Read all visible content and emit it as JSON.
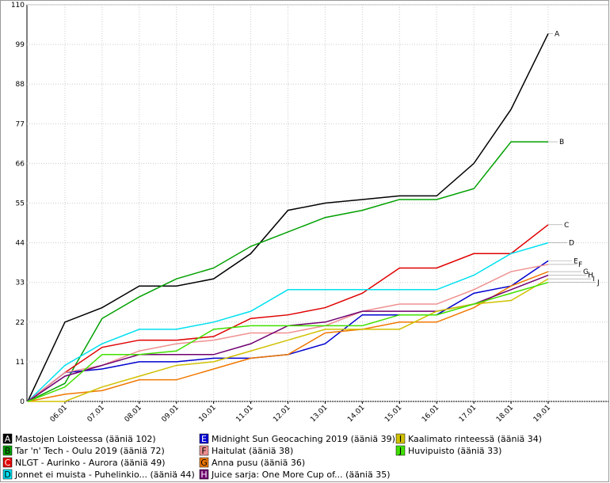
{
  "chart_data": {
    "type": "line",
    "categories": [
      null,
      "06.01",
      "07.01",
      "08.01",
      "09.01",
      "10.01",
      "11.01",
      "12.01",
      "13.01",
      "14.01",
      "15.01",
      "16.01",
      "17.01",
      "18.01",
      "19.01"
    ],
    "ylim": [
      0,
      110
    ],
    "yticks": [
      0,
      11,
      22,
      33,
      44,
      55,
      66,
      77,
      88,
      99,
      110
    ],
    "grid": true,
    "series": [
      {
        "letter": "A",
        "name": "Mastojen Loisteessa (ääniä 102)",
        "color": "#000000",
        "values": [
          0,
          22,
          26,
          32,
          32,
          34,
          41,
          53,
          55,
          56,
          57,
          57,
          66,
          81,
          102
        ]
      },
      {
        "letter": "B",
        "name": "Tar 'n' Tech - Oulu 2019 (ääniä 72)",
        "color": "#00a000",
        "values": [
          0,
          5,
          23,
          29,
          34,
          37,
          43,
          47,
          51,
          53,
          56,
          56,
          59,
          72,
          72
        ]
      },
      {
        "letter": "C",
        "name": "NLGT - Aurinko - Aurora (ääniä 49)",
        "color": "#e00000",
        "values": [
          0,
          8,
          15,
          17,
          17,
          18,
          23,
          24,
          26,
          30,
          37,
          37,
          41,
          41,
          49
        ]
      },
      {
        "letter": "D",
        "name": "Jonnet ei muista - Puhelinkio... (ääniä 44)",
        "color": "#00e0f0",
        "values": [
          0,
          10,
          16,
          20,
          20,
          22,
          25,
          31,
          31,
          31,
          31,
          31,
          35,
          41,
          44
        ]
      },
      {
        "letter": "E",
        "name": "Midnight Sun Geocaching 2019 (ääniä 39)",
        "color": "#0000d0",
        "values": [
          0,
          8,
          9,
          11,
          11,
          12,
          12,
          13,
          16,
          24,
          24,
          24,
          30,
          32,
          39
        ]
      },
      {
        "letter": "F",
        "name": "Haitulat (ääniä 38)",
        "color": "#f09090",
        "values": [
          0,
          8,
          10,
          14,
          16,
          17,
          19,
          19,
          21,
          25,
          27,
          27,
          31,
          36,
          38
        ]
      },
      {
        "letter": "G",
        "name": "Anna pusu (ääniä 36)",
        "color": "#f07800",
        "values": [
          0,
          2,
          3,
          6,
          6,
          9,
          12,
          13,
          19,
          20,
          22,
          22,
          26,
          32,
          36
        ]
      },
      {
        "letter": "H",
        "name": "Juice sarja: One More Cup of... (ääniä 35)",
        "color": "#700070",
        "values": [
          0,
          7,
          10,
          13,
          13,
          13,
          16,
          21,
          22,
          25,
          25,
          25,
          27,
          31,
          35
        ]
      },
      {
        "letter": "I",
        "name": "Kaalimato rinteessä (ääniä 34)",
        "color": "#d0c000",
        "values": [
          0,
          0,
          4,
          7,
          10,
          11,
          14,
          17,
          20,
          20,
          20,
          25,
          27,
          28,
          34
        ]
      },
      {
        "letter": "J",
        "name": "Huvipuisto (ääniä 33)",
        "color": "#40e000",
        "values": [
          0,
          4,
          13,
          13,
          14,
          20,
          21,
          21,
          21,
          21,
          24,
          24,
          27,
          30,
          33
        ]
      }
    ]
  }
}
